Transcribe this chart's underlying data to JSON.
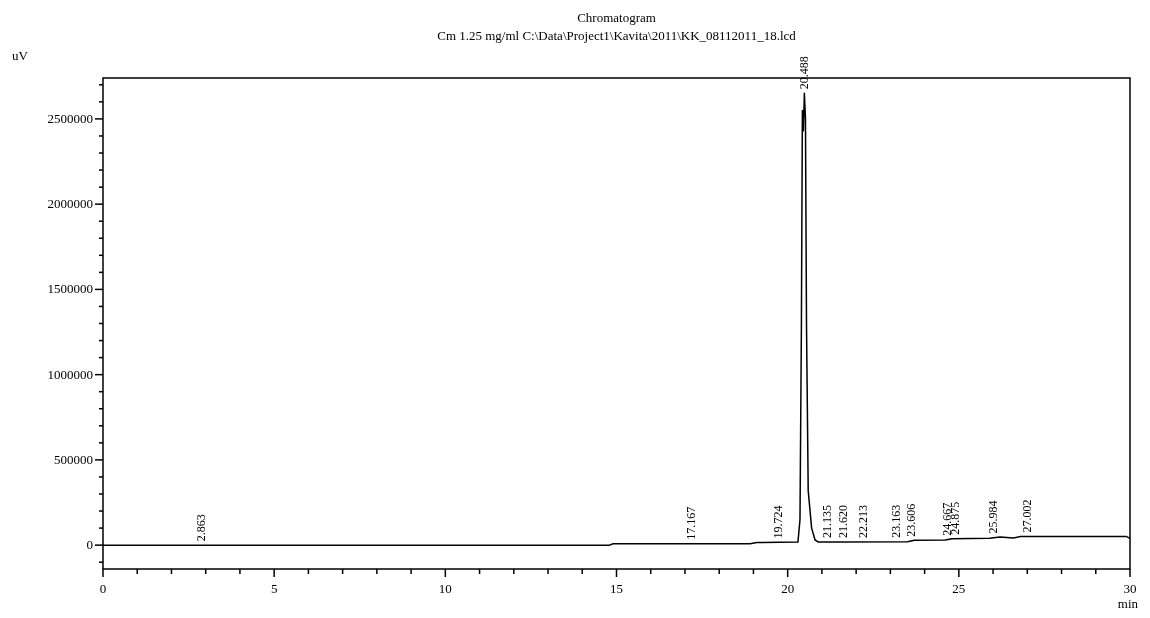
{
  "chart_data": {
    "type": "line",
    "title": "Chromatogram",
    "subtitle": "Cm 1.25 mg/ml C:\\Data\\Project1\\Kavita\\2011\\KK_08112011_18.lcd",
    "xlabel": "min",
    "ylabel": "uV",
    "xlim": [
      0,
      30
    ],
    "ylim": [
      -140000,
      2740000
    ],
    "xticks": [
      0,
      {
        "value": 1,
        "label": null
      },
      {
        "value": 2,
        "label": null
      },
      {
        "value": 3,
        "label": null
      },
      {
        "value": 4,
        "label": null
      },
      5,
      {
        "value": 6,
        "label": null
      },
      {
        "value": 7,
        "label": null
      },
      {
        "value": 8,
        "label": null
      },
      {
        "value": 9,
        "label": null
      },
      10,
      {
        "value": 11,
        "label": null
      },
      {
        "value": 12,
        "label": null
      },
      {
        "value": 13,
        "label": null
      },
      {
        "value": 14,
        "label": null
      },
      15,
      {
        "value": 16,
        "label": null
      },
      {
        "value": 17,
        "label": null
      },
      {
        "value": 18,
        "label": null
      },
      {
        "value": 19,
        "label": null
      },
      20,
      {
        "value": 21,
        "label": null
      },
      {
        "value": 22,
        "label": null
      },
      {
        "value": 23,
        "label": null
      },
      {
        "value": 24,
        "label": null
      },
      25,
      {
        "value": 26,
        "label": null
      },
      {
        "value": 27,
        "label": null
      },
      {
        "value": 28,
        "label": null
      },
      {
        "value": 29,
        "label": null
      },
      30
    ],
    "yticks": [
      {
        "value": -100000,
        "label": null
      },
      0,
      {
        "value": 100000,
        "label": null
      },
      {
        "value": 200000,
        "label": null
      },
      {
        "value": 300000,
        "label": null
      },
      {
        "value": 400000,
        "label": null
      },
      500000,
      {
        "value": 600000,
        "label": null
      },
      {
        "value": 700000,
        "label": null
      },
      {
        "value": 800000,
        "label": null
      },
      {
        "value": 900000,
        "label": null
      },
      1000000,
      {
        "value": 1100000,
        "label": null
      },
      {
        "value": 1200000,
        "label": null
      },
      {
        "value": 1300000,
        "label": null
      },
      {
        "value": 1400000,
        "label": null
      },
      1500000,
      {
        "value": 1600000,
        "label": null
      },
      {
        "value": 1700000,
        "label": null
      },
      {
        "value": 1800000,
        "label": null
      },
      {
        "value": 1900000,
        "label": null
      },
      2000000,
      {
        "value": 2100000,
        "label": null
      },
      {
        "value": 2200000,
        "label": null
      },
      {
        "value": 2300000,
        "label": null
      },
      {
        "value": 2400000,
        "label": null
      },
      2500000,
      {
        "value": 2600000,
        "label": null
      },
      {
        "value": 2700000,
        "label": null
      }
    ],
    "grid": false,
    "series": [
      {
        "color": "#000000",
        "x": [
          0,
          14.8,
          14.9,
          18.9,
          19.1,
          20.3,
          20.36,
          20.4,
          20.43,
          20.46,
          20.488,
          20.52,
          20.55,
          20.6,
          20.7,
          20.8,
          20.9,
          21.5,
          23.5,
          23.7,
          24.6,
          24.8,
          25.9,
          26.2,
          26.6,
          26.8,
          29.9,
          30
        ],
        "values": [
          0,
          0,
          8000,
          8000,
          15000,
          18000,
          150000,
          1250000,
          2550000,
          2430000,
          2650000,
          2500000,
          1300000,
          320000,
          100000,
          30000,
          18000,
          18000,
          20000,
          28000,
          30000,
          38000,
          40000,
          48000,
          42000,
          50000,
          50000,
          40000
        ]
      }
    ],
    "annotations": [
      {
        "text": "2.863",
        "x": 2.863,
        "y": 0
      },
      {
        "text": "17.167",
        "x": 17.167,
        "y": 8000
      },
      {
        "text": "19.724",
        "x": 19.724,
        "y": 16000
      },
      {
        "text": "20.488",
        "x": 20.488,
        "y": 2650000
      },
      {
        "text": "21.135",
        "x": 21.135,
        "y": 18000
      },
      {
        "text": "21.620",
        "x": 21.62,
        "y": 18000
      },
      {
        "text": "22.213",
        "x": 22.213,
        "y": 19000
      },
      {
        "text": "23.163",
        "x": 23.163,
        "y": 20000
      },
      {
        "text": "23.606",
        "x": 23.606,
        "y": 25000
      },
      {
        "text": "24.667",
        "x": 24.667,
        "y": 32000
      },
      {
        "text": "24.875",
        "x": 24.875,
        "y": 38000
      },
      {
        "text": "25.984",
        "x": 25.984,
        "y": 45000
      },
      {
        "text": "27.002",
        "x": 27.002,
        "y": 50000
      }
    ]
  }
}
